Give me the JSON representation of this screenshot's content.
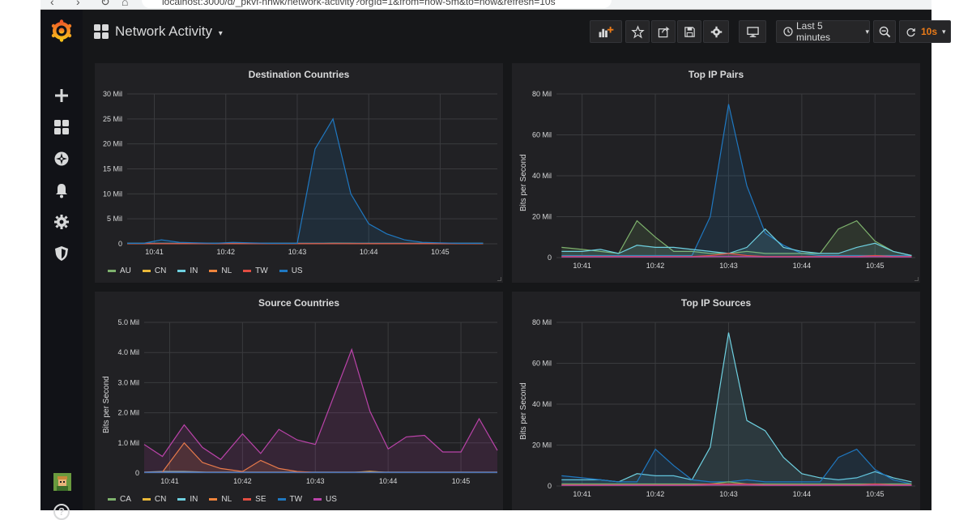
{
  "browser": {
    "url": "localhost:3000/d/_pkvf-nhwk/network-activity?orgId=1&from=now-5m&to=now&refresh=10s"
  },
  "header": {
    "dashboard_title": "Network Activity",
    "time_range": "Last 5 minutes",
    "refresh": "10s"
  },
  "colors": {
    "background": "#161719",
    "panel": "#212124",
    "accent": "#eb7b18"
  },
  "sidebar_icons": [
    "grafana-logo",
    "plus-icon",
    "dashboards-icon",
    "explore-icon",
    "alerting-icon",
    "configuration-icon",
    "shield-icon"
  ],
  "panels": [
    {
      "title": "Destination Countries",
      "y_title": "",
      "legend": [
        "AU",
        "CN",
        "IN",
        "NL",
        "TW",
        "US"
      ]
    },
    {
      "title": "Top IP Pairs",
      "y_title": "Bits per Second",
      "legend": []
    },
    {
      "title": "Source Countries",
      "y_title": "Bits per Second",
      "legend": [
        "CA",
        "CN",
        "IN",
        "NL",
        "SE",
        "TW",
        "US"
      ]
    },
    {
      "title": "Top IP Sources",
      "y_title": "Bits per Second",
      "legend": []
    }
  ],
  "chart_data": [
    {
      "type": "area",
      "title": "Destination Countries",
      "ylabel": "",
      "ylim": [
        0,
        30
      ],
      "y_ticks": [
        "0",
        "5 Mil",
        "10 Mil",
        "15 Mil",
        "20 Mil",
        "25 Mil",
        "30 Mil"
      ],
      "x_ticks": [
        "10:41",
        "10:42",
        "10:43",
        "10:44",
        "10:45"
      ],
      "xlim": [
        10.62,
        15.8
      ],
      "grid": true,
      "legend": "bottom",
      "series": [
        {
          "name": "AU",
          "color": "#7eb26d",
          "x": [
            10.62,
            15.6
          ],
          "values": [
            0.05,
            0.05
          ]
        },
        {
          "name": "CN",
          "color": "#eab839",
          "x": [
            10.62,
            13.3,
            13.5,
            13.75,
            14.0,
            15.6
          ],
          "values": [
            0.02,
            0.05,
            0.12,
            0.08,
            0.03,
            0.02
          ]
        },
        {
          "name": "IN",
          "color": "#6ed0e0",
          "x": [
            10.62,
            15.6
          ],
          "values": [
            0.1,
            0.1
          ]
        },
        {
          "name": "NL",
          "color": "#ef843c",
          "x": [
            10.62,
            15.6
          ],
          "values": [
            0.05,
            0.05
          ]
        },
        {
          "name": "TW",
          "color": "#e24d42",
          "x": [
            10.62,
            15.6
          ],
          "values": [
            0.03,
            0.03
          ]
        },
        {
          "name": "US",
          "color": "#1f78c1",
          "x": [
            10.62,
            10.85,
            11.1,
            11.35,
            11.6,
            11.85,
            12.1,
            12.35,
            12.6,
            12.85,
            13.0,
            13.25,
            13.5,
            13.75,
            14.0,
            14.25,
            14.5,
            14.75,
            15.0,
            15.25,
            15.6
          ],
          "values": [
            0.1,
            0.1,
            0.8,
            0.3,
            0.2,
            0.1,
            0.3,
            0.2,
            0.1,
            0.1,
            0.1,
            19,
            25,
            10,
            4,
            2,
            0.8,
            0.3,
            0.2,
            0.1,
            0.1
          ]
        }
      ]
    },
    {
      "type": "area",
      "title": "Top IP Pairs",
      "ylabel": "Bits per Second",
      "ylim": [
        0,
        80
      ],
      "y_ticks": [
        "0",
        "20 Mil",
        "40 Mil",
        "60 Mil",
        "80 Mil"
      ],
      "x_ticks": [
        "10:41",
        "10:42",
        "10:43",
        "10:44",
        "10:45"
      ],
      "xlim": [
        10.65,
        15.55
      ],
      "grid": true,
      "series": [
        {
          "name": "",
          "color": "#1f78c1",
          "x": [
            10.72,
            11.0,
            11.25,
            11.5,
            11.75,
            12.0,
            12.25,
            12.5,
            12.75,
            13.0,
            13.25,
            13.5,
            13.75,
            14.0,
            14.25,
            14.5,
            14.75,
            15.0,
            15.25,
            15.5
          ],
          "values": [
            1,
            1,
            1,
            1,
            1,
            1,
            1,
            1,
            20,
            75,
            35,
            12,
            6,
            2,
            1,
            1,
            1,
            1,
            1,
            1
          ]
        },
        {
          "name": "",
          "color": "#7eb26d",
          "x": [
            10.72,
            11.0,
            11.25,
            11.5,
            11.75,
            12.0,
            12.25,
            12.5,
            12.75,
            13.0,
            13.25,
            13.5,
            13.75,
            14.0,
            14.25,
            14.5,
            14.75,
            15.0,
            15.25,
            15.5
          ],
          "values": [
            5,
            4,
            3,
            2,
            18,
            10,
            3,
            3,
            2,
            2,
            3,
            2,
            2,
            2,
            2,
            14,
            18,
            8,
            3,
            1
          ]
        },
        {
          "name": "",
          "color": "#6ed0e0",
          "x": [
            10.72,
            11.0,
            11.25,
            11.5,
            11.75,
            12.0,
            12.25,
            12.5,
            12.75,
            13.0,
            13.25,
            13.5,
            13.75,
            14.0,
            14.25,
            14.5,
            14.75,
            15.0,
            15.25,
            15.5
          ],
          "values": [
            3,
            3,
            4,
            2,
            6,
            5,
            5,
            4,
            3,
            2,
            5,
            14,
            5,
            3,
            2,
            2,
            5,
            7,
            3,
            1
          ]
        },
        {
          "name": "",
          "color": "#e24d42",
          "x": [
            10.72,
            11.0,
            11.25,
            11.5,
            11.75,
            12.0,
            12.25,
            12.5,
            12.75,
            13.0,
            13.25,
            13.5,
            13.75,
            14.0,
            14.25,
            14.5,
            14.75,
            15.0,
            15.25,
            15.5
          ],
          "values": [
            0.5,
            0.5,
            0.5,
            0.5,
            0.5,
            0.5,
            0.5,
            0.5,
            1,
            2,
            1,
            0.5,
            0.5,
            0.5,
            0.5,
            0.5,
            0.5,
            1,
            0.5,
            0.5
          ]
        },
        {
          "name": "",
          "color": "#ba43a9",
          "x": [
            10.72,
            11.0,
            11.25,
            11.5,
            11.75,
            12.0,
            12.25,
            12.5,
            12.75,
            13.0,
            13.25,
            13.5,
            13.75,
            14.0,
            14.25,
            14.5,
            14.75,
            15.0,
            15.25,
            15.5
          ],
          "values": [
            0.3,
            0.3,
            0.3,
            0.3,
            0.3,
            0.3,
            0.3,
            0.3,
            0.5,
            0.5,
            0.5,
            0.3,
            0.3,
            0.3,
            0.3,
            0.3,
            0.3,
            0.5,
            0.3,
            0.3
          ]
        }
      ]
    },
    {
      "type": "area",
      "title": "Source Countries",
      "ylabel": "Bits per Second",
      "ylim": [
        0,
        5
      ],
      "y_ticks": [
        "0",
        "1.0 Mil",
        "2.0 Mil",
        "3.0 Mil",
        "4.0 Mil",
        "5.0 Mil"
      ],
      "x_ticks": [
        "10:41",
        "10:42",
        "10:43",
        "10:44",
        "10:45"
      ],
      "xlim": [
        10.65,
        15.5
      ],
      "grid": true,
      "legend": "bottom",
      "series": [
        {
          "name": "CA",
          "color": "#7eb26d",
          "x": [
            10.65,
            15.5
          ],
          "values": [
            0.02,
            0.02
          ]
        },
        {
          "name": "CN",
          "color": "#eab839",
          "x": [
            10.65,
            13.5,
            13.75,
            14.0,
            15.5
          ],
          "values": [
            0.02,
            0.02,
            0.06,
            0.02,
            0.02
          ]
        },
        {
          "name": "IN",
          "color": "#6ed0e0",
          "x": [
            10.65,
            10.9,
            11.2,
            11.5,
            15.5
          ],
          "values": [
            0.03,
            0.05,
            0.05,
            0.03,
            0.03
          ]
        },
        {
          "name": "NL",
          "color": "#ef843c",
          "x": [
            10.65,
            10.9,
            11.2,
            11.45,
            11.7,
            12.0,
            12.25,
            12.5,
            12.75,
            13.0,
            13.25,
            15.5
          ],
          "values": [
            0.02,
            0.03,
            1.0,
            0.35,
            0.15,
            0.05,
            0.42,
            0.15,
            0.05,
            0.02,
            0.02,
            0.02
          ]
        },
        {
          "name": "SE",
          "color": "#e24d42",
          "x": [
            10.65,
            15.5
          ],
          "values": [
            0.02,
            0.02
          ]
        },
        {
          "name": "TW",
          "color": "#1f78c1",
          "x": [
            10.65,
            15.5
          ],
          "values": [
            0.02,
            0.02
          ]
        },
        {
          "name": "US",
          "color": "#ba43a9",
          "x": [
            10.65,
            10.9,
            11.2,
            11.45,
            11.7,
            12.0,
            12.25,
            12.5,
            12.75,
            13.0,
            13.5,
            13.75,
            14.0,
            14.25,
            14.5,
            14.75,
            15.0,
            15.25,
            15.5
          ],
          "values": [
            0.95,
            0.55,
            1.6,
            0.85,
            0.45,
            1.3,
            0.65,
            1.45,
            1.1,
            0.95,
            4.1,
            2.05,
            0.8,
            1.2,
            1.25,
            0.7,
            0.7,
            1.8,
            0.75
          ]
        }
      ]
    },
    {
      "type": "area",
      "title": "Top IP Sources",
      "ylabel": "Bits per Second",
      "ylim": [
        0,
        80
      ],
      "y_ticks": [
        "0",
        "20 Mil",
        "40 Mil",
        "60 Mil",
        "80 Mil"
      ],
      "x_ticks": [
        "10:41",
        "10:42",
        "10:43",
        "10:44",
        "10:45"
      ],
      "xlim": [
        10.65,
        15.55
      ],
      "grid": true,
      "series": [
        {
          "name": "",
          "color": "#6ed0e0",
          "x": [
            10.72,
            11.0,
            11.25,
            11.5,
            11.75,
            12.0,
            12.25,
            12.5,
            12.75,
            13.0,
            13.25,
            13.5,
            13.75,
            14.0,
            14.25,
            14.5,
            14.75,
            15.0,
            15.25,
            15.5
          ],
          "values": [
            3,
            3,
            3,
            2,
            6,
            5,
            5,
            3,
            19,
            75,
            32,
            27,
            14,
            6,
            4,
            3,
            4,
            7,
            4,
            2
          ]
        },
        {
          "name": "",
          "color": "#1f78c1",
          "x": [
            10.72,
            11.0,
            11.25,
            11.5,
            11.75,
            12.0,
            12.25,
            12.5,
            12.75,
            13.0,
            13.25,
            13.5,
            13.75,
            14.0,
            14.25,
            14.5,
            14.75,
            15.0,
            15.25,
            15.5
          ],
          "values": [
            5,
            4,
            3,
            2,
            2,
            18,
            10,
            3,
            2,
            2,
            3,
            2,
            2,
            2,
            2,
            14,
            18,
            8,
            3,
            1
          ]
        },
        {
          "name": "",
          "color": "#7eb26d",
          "x": [
            10.72,
            11.0,
            11.25,
            11.5,
            11.75,
            12.0,
            12.25,
            12.5,
            12.75,
            13.0,
            13.25,
            13.5,
            13.75,
            14.0,
            14.25,
            14.5,
            14.75,
            15.0,
            15.25,
            15.5
          ],
          "values": [
            1,
            1,
            1,
            1,
            1,
            1,
            1,
            1,
            1,
            2,
            1,
            1,
            1,
            1,
            1,
            1,
            1,
            1,
            1,
            1
          ]
        },
        {
          "name": "",
          "color": "#e24d42",
          "x": [
            10.72,
            11.0,
            11.25,
            11.5,
            11.75,
            12.0,
            12.25,
            12.5,
            12.75,
            13.0,
            13.25,
            13.5,
            13.75,
            14.0,
            14.25,
            14.5,
            14.75,
            15.0,
            15.25,
            15.5
          ],
          "values": [
            0.5,
            0.5,
            0.5,
            0.5,
            0.5,
            0.5,
            0.5,
            0.5,
            1,
            1,
            1,
            0.5,
            0.5,
            0.5,
            0.5,
            0.5,
            0.5,
            1,
            0.5,
            0.5
          ]
        },
        {
          "name": "",
          "color": "#ba43a9",
          "x": [
            10.72,
            11.0,
            11.25,
            11.5,
            11.75,
            12.0,
            12.25,
            12.5,
            12.75,
            13.0,
            13.25,
            13.5,
            13.75,
            14.0,
            14.25,
            14.5,
            14.75,
            15.0,
            15.25,
            15.5
          ],
          "values": [
            0.3,
            0.3,
            0.3,
            0.3,
            0.3,
            0.3,
            0.3,
            0.3,
            0.5,
            0.5,
            0.5,
            0.3,
            0.3,
            0.3,
            0.3,
            0.3,
            0.3,
            0.5,
            0.3,
            0.3
          ]
        }
      ]
    }
  ]
}
